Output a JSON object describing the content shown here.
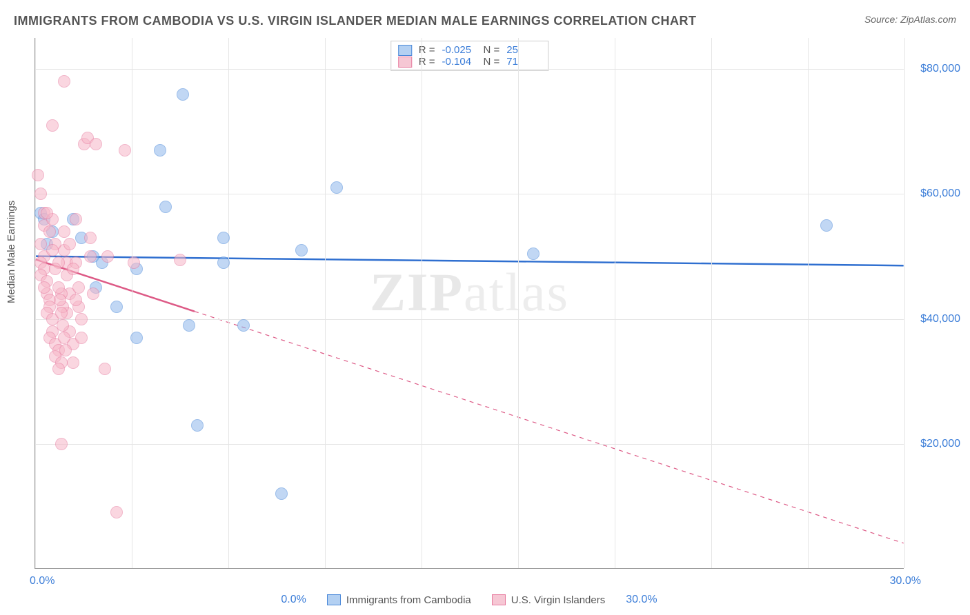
{
  "header": {
    "title": "IMMIGRANTS FROM CAMBODIA VS U.S. VIRGIN ISLANDER MEDIAN MALE EARNINGS CORRELATION CHART",
    "source_label": "Source: ZipAtlas.com"
  },
  "chart": {
    "type": "scatter",
    "y_axis_label": "Median Male Earnings",
    "watermark": "ZIPatlas",
    "background_color": "#ffffff",
    "grid_color": "#e5e5e5",
    "axis_color": "#999999",
    "xlim": [
      0,
      30
    ],
    "ylim": [
      0,
      85000
    ],
    "x_ticks_pct": [
      0,
      3.33,
      6.67,
      10,
      13.33,
      16.67,
      20,
      23.33,
      26.67,
      30
    ],
    "x_tick_label_left": "0.0%",
    "x_tick_label_right": "30.0%",
    "y_ticks": [
      {
        "value": 20000,
        "label": "$20,000"
      },
      {
        "value": 40000,
        "label": "$40,000"
      },
      {
        "value": 60000,
        "label": "$60,000"
      },
      {
        "value": 80000,
        "label": "$80,000"
      }
    ],
    "series": [
      {
        "id": "cambodia",
        "label": "Immigrants from Cambodia",
        "color_fill": "#8fb8ec",
        "color_stroke": "#4a88d9",
        "trend_color": "#2f6fd0",
        "trend_width": 2.5,
        "trend_dash": "none",
        "R": "-0.025",
        "N": "25",
        "trend_y_at_xmin": 50000,
        "trend_y_at_xmax": 48500,
        "points": [
          {
            "x": 0.2,
            "y": 57000
          },
          {
            "x": 0.3,
            "y": 56000
          },
          {
            "x": 0.4,
            "y": 52000
          },
          {
            "x": 1.3,
            "y": 56000
          },
          {
            "x": 2.0,
            "y": 50000
          },
          {
            "x": 2.3,
            "y": 49000
          },
          {
            "x": 2.1,
            "y": 45000
          },
          {
            "x": 2.8,
            "y": 42000
          },
          {
            "x": 3.5,
            "y": 48000
          },
          {
            "x": 3.5,
            "y": 37000
          },
          {
            "x": 4.3,
            "y": 67000
          },
          {
            "x": 4.5,
            "y": 58000
          },
          {
            "x": 5.3,
            "y": 39000
          },
          {
            "x": 5.1,
            "y": 76000
          },
          {
            "x": 5.6,
            "y": 23000
          },
          {
            "x": 6.5,
            "y": 53000
          },
          {
            "x": 6.5,
            "y": 49000
          },
          {
            "x": 7.2,
            "y": 39000
          },
          {
            "x": 8.5,
            "y": 12000
          },
          {
            "x": 9.2,
            "y": 51000
          },
          {
            "x": 10.4,
            "y": 61000
          },
          {
            "x": 17.2,
            "y": 50500
          },
          {
            "x": 27.3,
            "y": 55000
          },
          {
            "x": 1.6,
            "y": 53000
          },
          {
            "x": 0.6,
            "y": 54000
          }
        ]
      },
      {
        "id": "usvi",
        "label": "U.S. Virgin Islanders",
        "color_fill": "#f7b6c7",
        "color_stroke": "#e77ca0",
        "trend_color": "#dd5a86",
        "trend_width": 2.5,
        "trend_dash": "6,6",
        "R": "-0.104",
        "N": "71",
        "trend_y_at_xmin": 49500,
        "trend_y_at_xmax": 4000,
        "trend_solid_until_x": 5.5,
        "points": [
          {
            "x": 0.1,
            "y": 63000
          },
          {
            "x": 0.2,
            "y": 60000
          },
          {
            "x": 0.3,
            "y": 57000
          },
          {
            "x": 0.3,
            "y": 55000
          },
          {
            "x": 0.2,
            "y": 52000
          },
          {
            "x": 0.3,
            "y": 50000
          },
          {
            "x": 0.2,
            "y": 49000
          },
          {
            "x": 0.3,
            "y": 48000
          },
          {
            "x": 0.2,
            "y": 47000
          },
          {
            "x": 0.4,
            "y": 46000
          },
          {
            "x": 0.4,
            "y": 44000
          },
          {
            "x": 0.5,
            "y": 43000
          },
          {
            "x": 0.5,
            "y": 42000
          },
          {
            "x": 0.4,
            "y": 41000
          },
          {
            "x": 0.6,
            "y": 40000
          },
          {
            "x": 0.6,
            "y": 38000
          },
          {
            "x": 0.5,
            "y": 37000
          },
          {
            "x": 0.7,
            "y": 36000
          },
          {
            "x": 0.8,
            "y": 35000
          },
          {
            "x": 0.7,
            "y": 34000
          },
          {
            "x": 0.9,
            "y": 33000
          },
          {
            "x": 0.8,
            "y": 32000
          },
          {
            "x": 0.9,
            "y": 20000
          },
          {
            "x": 1.0,
            "y": 54000
          },
          {
            "x": 1.0,
            "y": 51000
          },
          {
            "x": 1.1,
            "y": 49000
          },
          {
            "x": 1.1,
            "y": 47000
          },
          {
            "x": 1.2,
            "y": 44000
          },
          {
            "x": 1.1,
            "y": 41000
          },
          {
            "x": 1.2,
            "y": 38000
          },
          {
            "x": 1.3,
            "y": 36000
          },
          {
            "x": 1.3,
            "y": 33000
          },
          {
            "x": 1.0,
            "y": 78000
          },
          {
            "x": 1.4,
            "y": 56000
          },
          {
            "x": 1.4,
            "y": 49000
          },
          {
            "x": 1.5,
            "y": 45000
          },
          {
            "x": 1.5,
            "y": 42000
          },
          {
            "x": 1.6,
            "y": 40000
          },
          {
            "x": 1.6,
            "y": 37000
          },
          {
            "x": 1.7,
            "y": 68000
          },
          {
            "x": 1.8,
            "y": 69000
          },
          {
            "x": 1.9,
            "y": 53000
          },
          {
            "x": 1.9,
            "y": 50000
          },
          {
            "x": 2.0,
            "y": 44000
          },
          {
            "x": 2.1,
            "y": 68000
          },
          {
            "x": 2.4,
            "y": 32000
          },
          {
            "x": 2.5,
            "y": 50000
          },
          {
            "x": 2.8,
            "y": 9000
          },
          {
            "x": 3.1,
            "y": 67000
          },
          {
            "x": 3.4,
            "y": 49000
          },
          {
            "x": 0.6,
            "y": 71000
          },
          {
            "x": 0.6,
            "y": 56000
          },
          {
            "x": 0.7,
            "y": 52000
          },
          {
            "x": 0.8,
            "y": 49000
          },
          {
            "x": 0.9,
            "y": 44000
          },
          {
            "x": 0.95,
            "y": 42000
          },
          {
            "x": 1.0,
            "y": 37000
          },
          {
            "x": 1.05,
            "y": 35000
          },
          {
            "x": 0.4,
            "y": 57000
          },
          {
            "x": 0.5,
            "y": 54000
          },
          {
            "x": 0.6,
            "y": 51000
          },
          {
            "x": 0.7,
            "y": 48000
          },
          {
            "x": 0.8,
            "y": 45000
          },
          {
            "x": 0.85,
            "y": 43000
          },
          {
            "x": 0.9,
            "y": 41000
          },
          {
            "x": 0.95,
            "y": 39000
          },
          {
            "x": 1.2,
            "y": 52000
          },
          {
            "x": 1.3,
            "y": 48000
          },
          {
            "x": 1.4,
            "y": 43000
          },
          {
            "x": 5.0,
            "y": 49500
          },
          {
            "x": 0.3,
            "y": 45000
          }
        ]
      }
    ]
  },
  "legend_top": {
    "r_label": "R =",
    "n_label": "N ="
  }
}
